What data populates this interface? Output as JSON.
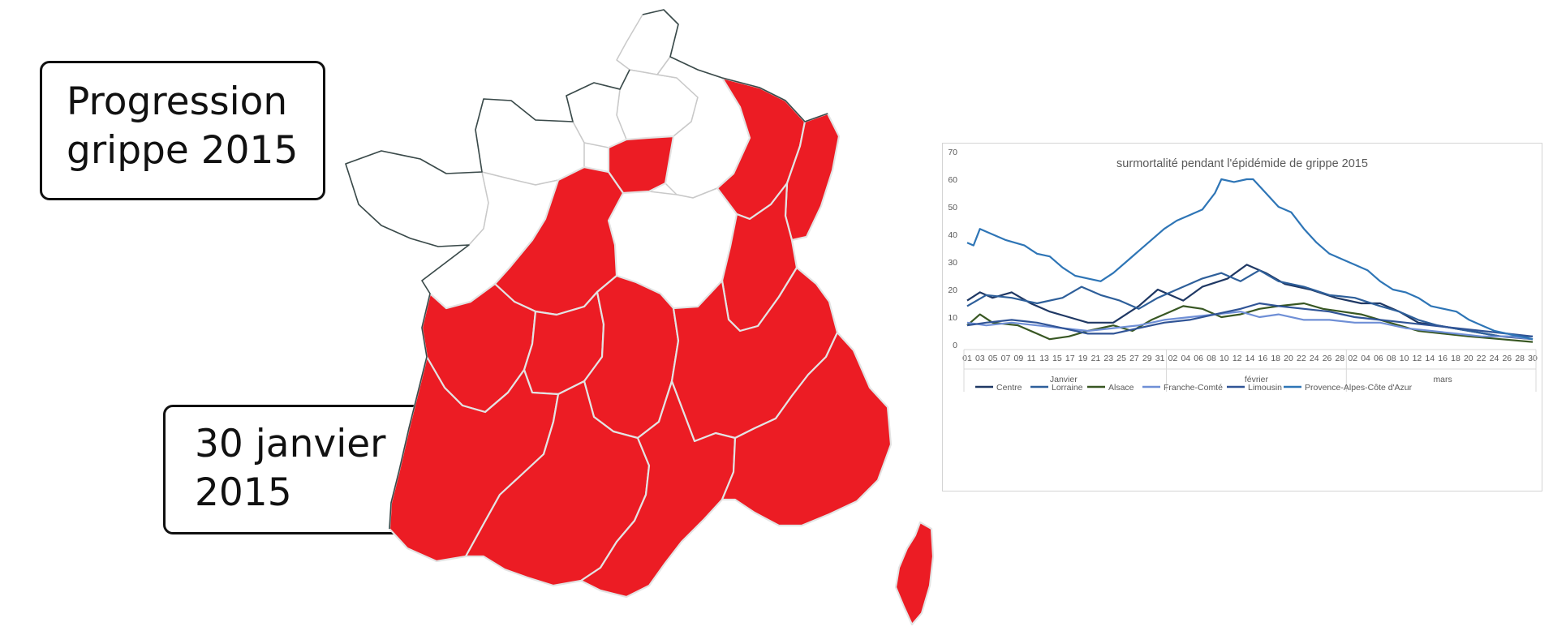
{
  "labels": {
    "title_line1": "Progression",
    "title_line2": "grippe 2015",
    "date_line1": "30 janvier",
    "date_line2": "2015"
  },
  "map": {
    "affected_color": "#ec1c24",
    "unaffected_color": "#ffffff",
    "regions": [
      {
        "name": "Nord-Pas-de-Calais",
        "affected": false
      },
      {
        "name": "Picardie",
        "affected": false
      },
      {
        "name": "Haute-Normandie",
        "affected": false
      },
      {
        "name": "Basse-Normandie",
        "affected": false
      },
      {
        "name": "Bretagne",
        "affected": false
      },
      {
        "name": "Pays de la Loire",
        "affected": false
      },
      {
        "name": "Île-de-France",
        "affected": true
      },
      {
        "name": "Centre",
        "affected": true
      },
      {
        "name": "Champagne-Ardenne",
        "affected": false
      },
      {
        "name": "Lorraine",
        "affected": true
      },
      {
        "name": "Alsace",
        "affected": true
      },
      {
        "name": "Bourgogne",
        "affected": false
      },
      {
        "name": "Franche-Comté",
        "affected": true
      },
      {
        "name": "Poitou-Charentes",
        "affected": true
      },
      {
        "name": "Limousin",
        "affected": true
      },
      {
        "name": "Auvergne",
        "affected": true
      },
      {
        "name": "Rhône-Alpes",
        "affected": true
      },
      {
        "name": "Aquitaine",
        "affected": true
      },
      {
        "name": "Midi-Pyrénées",
        "affected": true
      },
      {
        "name": "Languedoc-Roussillon",
        "affected": true
      },
      {
        "name": "Provence-Alpes-Côte d'Azur",
        "affected": true
      },
      {
        "name": "Corse",
        "affected": true
      }
    ]
  },
  "chart_data": {
    "type": "line",
    "title": "surmortalité pendant l'épidémide de grippe 2015",
    "xlabel": "",
    "ylabel": "",
    "ylim": [
      0,
      70
    ],
    "yticks": [
      0,
      10,
      20,
      30,
      40,
      50,
      60,
      70
    ],
    "grid": false,
    "legend_position": "bottom",
    "months": [
      {
        "label": "Janvier",
        "days": [
          "01",
          "03",
          "05",
          "07",
          "09",
          "11",
          "13",
          "15",
          "17",
          "19",
          "21",
          "23",
          "25",
          "27",
          "29",
          "31"
        ]
      },
      {
        "label": "février",
        "days": [
          "02",
          "04",
          "06",
          "08",
          "10",
          "12",
          "14",
          "16",
          "18",
          "20",
          "22",
          "24",
          "26",
          "28"
        ]
      },
      {
        "label": "mars",
        "days": [
          "02",
          "04",
          "06",
          "08",
          "10",
          "12",
          "14",
          "16",
          "18",
          "20",
          "22",
          "24",
          "26",
          "28",
          "30"
        ]
      }
    ],
    "x_start": "2015-01-01",
    "x_end": "2015-03-31",
    "series": [
      {
        "name": "Centre",
        "color": "#1f3864",
        "anchors": [
          [
            1,
            16
          ],
          [
            3,
            19
          ],
          [
            5,
            17
          ],
          [
            8,
            19
          ],
          [
            11,
            15
          ],
          [
            14,
            12
          ],
          [
            17,
            10
          ],
          [
            20,
            8
          ],
          [
            24,
            8
          ],
          [
            28,
            14
          ],
          [
            31,
            20
          ],
          [
            35,
            16
          ],
          [
            38,
            21
          ],
          [
            42,
            24
          ],
          [
            45,
            29
          ],
          [
            48,
            26
          ],
          [
            51,
            22
          ],
          [
            55,
            20
          ],
          [
            59,
            17
          ],
          [
            63,
            15
          ],
          [
            66,
            15
          ],
          [
            69,
            12
          ],
          [
            72,
            8
          ],
          [
            75,
            7
          ],
          [
            80,
            5
          ],
          [
            85,
            3
          ],
          [
            90,
            2
          ]
        ]
      },
      {
        "name": "Lorraine",
        "color": "#2e5f9a",
        "anchors": [
          [
            1,
            14
          ],
          [
            4,
            18
          ],
          [
            8,
            17
          ],
          [
            12,
            15
          ],
          [
            16,
            17
          ],
          [
            19,
            21
          ],
          [
            22,
            18
          ],
          [
            25,
            16
          ],
          [
            28,
            13
          ],
          [
            31,
            17
          ],
          [
            34,
            20
          ],
          [
            38,
            24
          ],
          [
            41,
            26
          ],
          [
            44,
            23
          ],
          [
            47,
            27
          ],
          [
            50,
            23
          ],
          [
            54,
            21
          ],
          [
            58,
            18
          ],
          [
            62,
            17
          ],
          [
            66,
            14
          ],
          [
            69,
            12
          ],
          [
            72,
            9
          ],
          [
            75,
            7
          ],
          [
            80,
            5
          ],
          [
            85,
            3
          ],
          [
            90,
            3
          ]
        ]
      },
      {
        "name": "Alsace",
        "color": "#385723",
        "anchors": [
          [
            1,
            7
          ],
          [
            3,
            11
          ],
          [
            5,
            8
          ],
          [
            9,
            7
          ],
          [
            12,
            4
          ],
          [
            14,
            2
          ],
          [
            17,
            3
          ],
          [
            20,
            5
          ],
          [
            24,
            7
          ],
          [
            27,
            5
          ],
          [
            30,
            9
          ],
          [
            33,
            12
          ],
          [
            35,
            14
          ],
          [
            38,
            13
          ],
          [
            41,
            10
          ],
          [
            44,
            11
          ],
          [
            47,
            13
          ],
          [
            50,
            14
          ],
          [
            54,
            15
          ],
          [
            57,
            13
          ],
          [
            60,
            12
          ],
          [
            63,
            11
          ],
          [
            66,
            9
          ],
          [
            69,
            7
          ],
          [
            72,
            5
          ],
          [
            76,
            4
          ],
          [
            80,
            3
          ],
          [
            85,
            2
          ],
          [
            90,
            1
          ]
        ]
      },
      {
        "name": "Franche-Comté",
        "color": "#6f8fd6",
        "anchors": [
          [
            1,
            8
          ],
          [
            4,
            7
          ],
          [
            8,
            8
          ],
          [
            12,
            7
          ],
          [
            16,
            6
          ],
          [
            20,
            5
          ],
          [
            24,
            6
          ],
          [
            28,
            7
          ],
          [
            32,
            9
          ],
          [
            36,
            10
          ],
          [
            40,
            11
          ],
          [
            44,
            12
          ],
          [
            47,
            10
          ],
          [
            50,
            11
          ],
          [
            54,
            9
          ],
          [
            58,
            9
          ],
          [
            62,
            8
          ],
          [
            66,
            8
          ],
          [
            70,
            6
          ],
          [
            74,
            5
          ],
          [
            78,
            4
          ],
          [
            82,
            3
          ],
          [
            86,
            3
          ],
          [
            90,
            2
          ]
        ]
      },
      {
        "name": "Limousin",
        "color": "#305496",
        "anchors": [
          [
            1,
            7
          ],
          [
            4,
            8
          ],
          [
            8,
            9
          ],
          [
            12,
            8
          ],
          [
            16,
            6
          ],
          [
            20,
            4
          ],
          [
            24,
            4
          ],
          [
            28,
            6
          ],
          [
            32,
            8
          ],
          [
            36,
            9
          ],
          [
            40,
            11
          ],
          [
            44,
            13
          ],
          [
            47,
            15
          ],
          [
            50,
            14
          ],
          [
            54,
            13
          ],
          [
            58,
            12
          ],
          [
            62,
            10
          ],
          [
            66,
            9
          ],
          [
            70,
            8
          ],
          [
            74,
            7
          ],
          [
            78,
            6
          ],
          [
            82,
            5
          ],
          [
            86,
            4
          ],
          [
            90,
            3
          ]
        ]
      },
      {
        "name": "Provence-Alpes-Côte d'Azur",
        "color": "#2e75b6",
        "anchors": [
          [
            1,
            37
          ],
          [
            2,
            36
          ],
          [
            3,
            42
          ],
          [
            5,
            40
          ],
          [
            7,
            38
          ],
          [
            10,
            36
          ],
          [
            12,
            33
          ],
          [
            14,
            32
          ],
          [
            16,
            28
          ],
          [
            18,
            25
          ],
          [
            20,
            24
          ],
          [
            22,
            23
          ],
          [
            24,
            26
          ],
          [
            26,
            30
          ],
          [
            28,
            34
          ],
          [
            30,
            38
          ],
          [
            32,
            42
          ],
          [
            34,
            45
          ],
          [
            36,
            47
          ],
          [
            38,
            49
          ],
          [
            40,
            55
          ],
          [
            41,
            60
          ],
          [
            43,
            59
          ],
          [
            45,
            60
          ],
          [
            46,
            60
          ],
          [
            48,
            55
          ],
          [
            50,
            50
          ],
          [
            52,
            48
          ],
          [
            54,
            42
          ],
          [
            56,
            37
          ],
          [
            58,
            33
          ],
          [
            60,
            31
          ],
          [
            62,
            29
          ],
          [
            64,
            27
          ],
          [
            66,
            23
          ],
          [
            68,
            20
          ],
          [
            70,
            19
          ],
          [
            72,
            17
          ],
          [
            74,
            14
          ],
          [
            76,
            13
          ],
          [
            78,
            12
          ],
          [
            80,
            9
          ],
          [
            82,
            7
          ],
          [
            84,
            5
          ],
          [
            86,
            4
          ],
          [
            88,
            3
          ],
          [
            90,
            2
          ]
        ]
      }
    ]
  }
}
